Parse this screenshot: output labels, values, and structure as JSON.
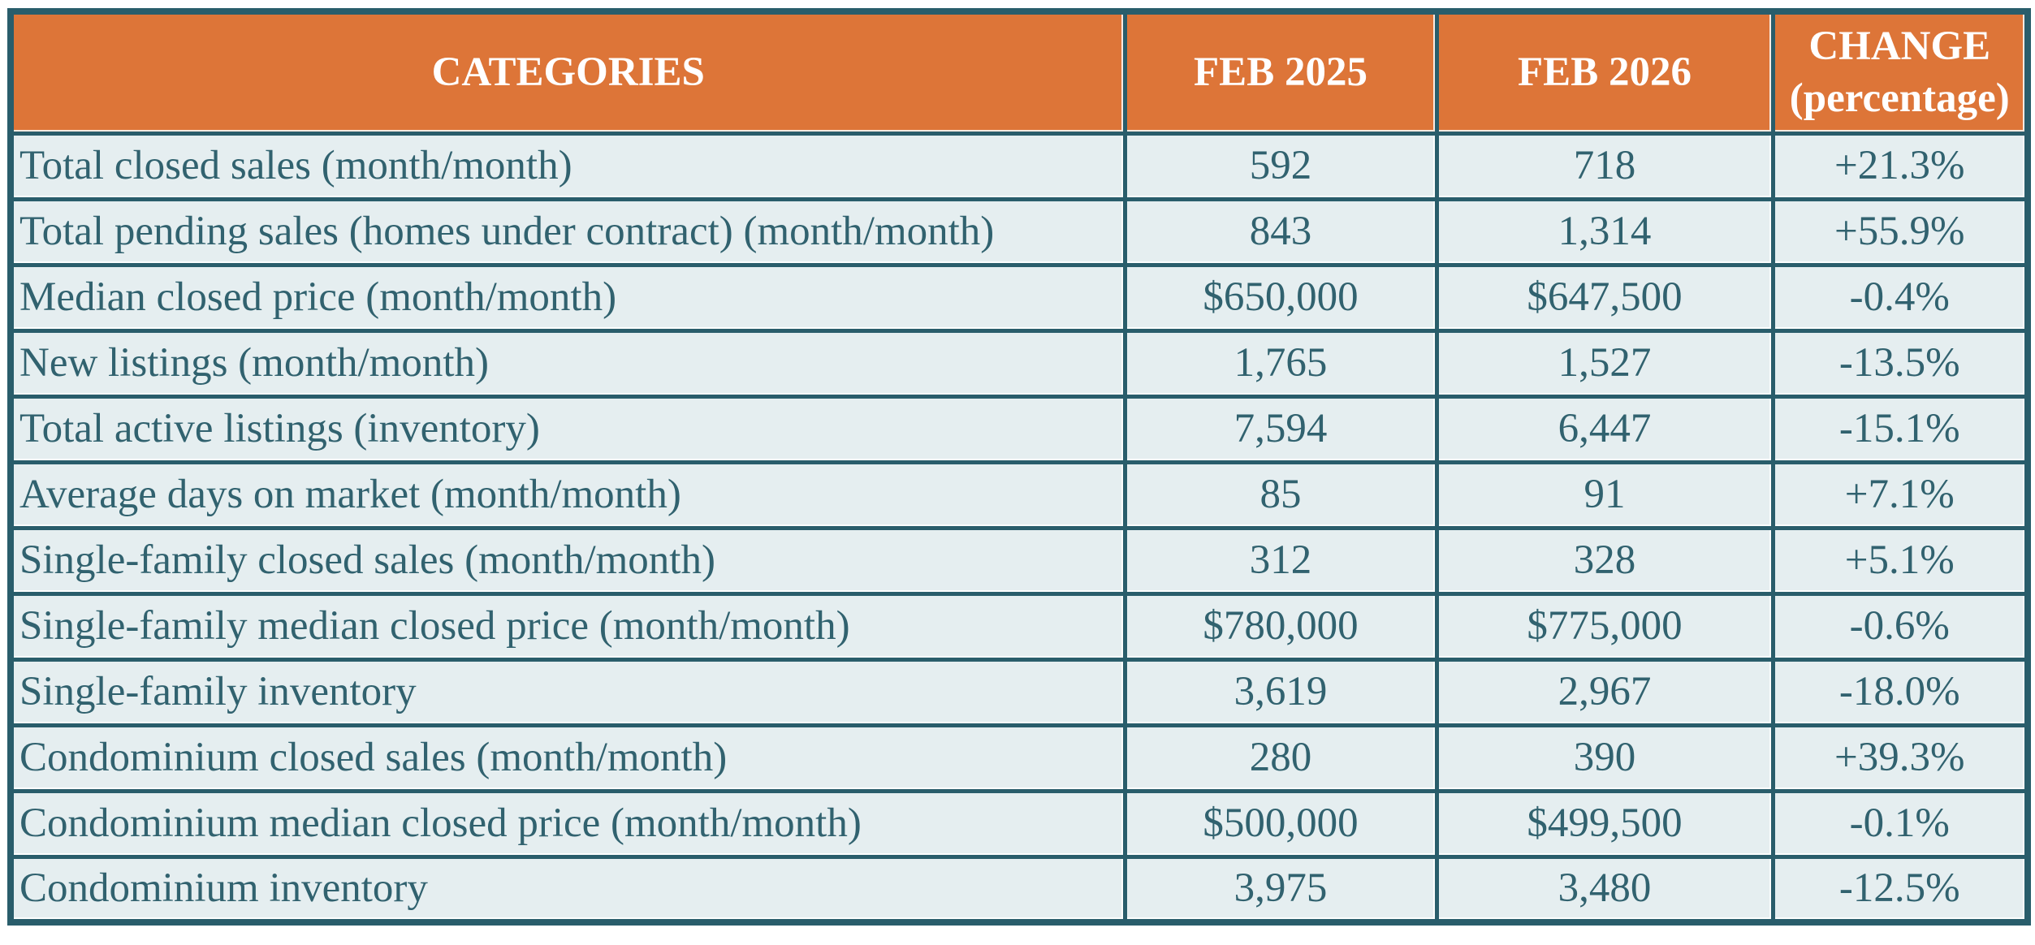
{
  "colors": {
    "header_bg": "#DD7538",
    "header_text": "#FFFFFF",
    "border": "#295D6B",
    "row_bg": "#E5EEF0",
    "body_text": "#31626F",
    "page_bg": "#FFFFFF"
  },
  "chart_data": {
    "type": "table",
    "columns": [
      "CATEGORIES",
      "FEB 2025",
      "FEB 2026",
      "CHANGE (percentage)"
    ],
    "rows": [
      [
        "Total closed sales (month/month)",
        "592",
        "718",
        "+21.3%"
      ],
      [
        "Total pending sales (homes under contract) (month/month)",
        "843",
        "1,314",
        "+55.9%"
      ],
      [
        "Median closed price (month/month)",
        "$650,000",
        "$647,500",
        "-0.4%"
      ],
      [
        "New listings (month/month)",
        "1,765",
        "1,527",
        "-13.5%"
      ],
      [
        "Total active listings (inventory)",
        "7,594",
        "6,447",
        "-15.1%"
      ],
      [
        "Average days on market (month/month)",
        "85",
        "91",
        "+7.1%"
      ],
      [
        "Single-family closed sales (month/month)",
        "312",
        "328",
        "+5.1%"
      ],
      [
        "Single-family median closed price (month/month)",
        "$780,000",
        "$775,000",
        "-0.6%"
      ],
      [
        "Single-family inventory",
        "3,619",
        "2,967",
        "-18.0%"
      ],
      [
        "Condominium closed sales (month/month)",
        "280",
        "390",
        "+39.3%"
      ],
      [
        "Condominium median closed price (month/month)",
        "$500,000",
        "$499,500",
        "-0.1%"
      ],
      [
        "Condominium inventory",
        "3,975",
        "3,480",
        "-12.5%"
      ]
    ]
  }
}
